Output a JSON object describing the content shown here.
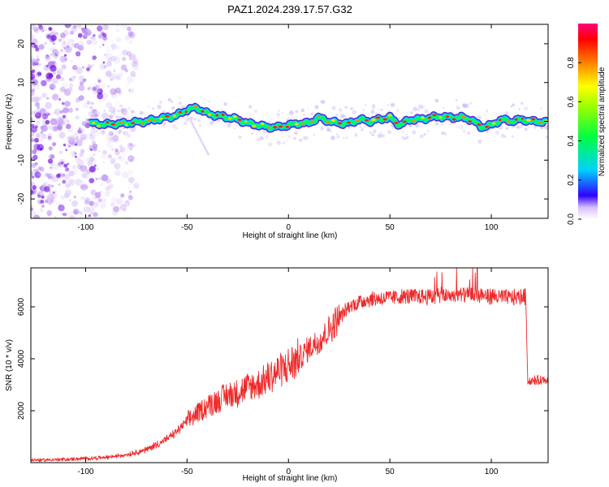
{
  "figure": {
    "title": "PAZ1.2024.239.17.57.G32"
  },
  "colors": {
    "ridge_low": "#2020ff",
    "ridge_mid": "#00d8ff",
    "ridge_high": "#00ff40",
    "ridge_peak": "#ff2020",
    "noise": "#8a2be2",
    "snr_line": "#ee2a2a"
  },
  "chart_data": [
    {
      "type": "heatmap",
      "title": "PAZ1.2024.239.17.57.G32",
      "xlabel": "Height of straight line (km)",
      "ylabel": "Frequency (Hz)",
      "xlim": [
        -127,
        128
      ],
      "ylim": [
        -25,
        25
      ],
      "x_ticks": [
        -100,
        -50,
        0,
        50,
        100
      ],
      "y_ticks": [
        -20,
        -10,
        0,
        10,
        20
      ],
      "colorbar": {
        "label": "Normalized spectral amplitude",
        "range": [
          0,
          1
        ],
        "ticks": [
          "0.0",
          "0.2",
          "0.4",
          "0.6",
          "0.8"
        ],
        "tick_values": [
          0.0,
          0.2,
          0.4,
          0.6,
          0.8
        ]
      },
      "ridge": {
        "x": [
          -98,
          -90,
          -80,
          -70,
          -60,
          -55,
          -50,
          -45,
          -40,
          -35,
          -30,
          -25,
          -20,
          -15,
          -10,
          -5,
          0,
          5,
          10,
          15,
          20,
          25,
          30,
          35,
          40,
          45,
          50,
          55,
          60,
          65,
          70,
          75,
          80,
          85,
          90,
          95,
          100,
          105,
          110,
          115,
          120,
          128
        ],
        "y": [
          -0.5,
          -0.8,
          -0.5,
          0,
          1,
          1.5,
          3,
          3.5,
          2,
          1.5,
          1,
          0.5,
          -0.5,
          -1,
          -1.5,
          -1.5,
          -1,
          -0.5,
          -0.5,
          1,
          0,
          -0.5,
          -0.5,
          0.5,
          0,
          0.5,
          1,
          -1,
          0.5,
          0.5,
          1,
          1.2,
          1,
          1,
          0.5,
          -1.5,
          -1,
          0.5,
          0,
          0.5,
          0,
          -0.2
        ]
      },
      "noise_region": {
        "x_from": -127,
        "x_to": -90
      }
    },
    {
      "type": "line",
      "xlabel": "Height of straight line (km)",
      "ylabel": "SNR (10 * v/v)",
      "xlim": [
        -127,
        128
      ],
      "ylim": [
        0,
        7500
      ],
      "x_ticks": [
        -100,
        -50,
        0,
        50,
        100
      ],
      "y_ticks": [
        2000,
        4000,
        6000
      ],
      "series": [
        {
          "x": [
            -127,
            -110,
            -90,
            -80,
            -70,
            -65,
            -60,
            -55,
            -50,
            -45,
            -40,
            -35,
            -30,
            -25,
            -20,
            -15,
            -10,
            -5,
            0,
            5,
            10,
            15,
            20,
            25,
            30,
            35,
            40,
            50,
            60,
            70,
            80,
            90,
            100,
            110,
            117,
            118,
            120,
            128
          ],
          "y": [
            100,
            120,
            200,
            300,
            500,
            700,
            900,
            1200,
            1600,
            1900,
            2200,
            2400,
            2600,
            2700,
            2900,
            3000,
            3300,
            3500,
            3700,
            4000,
            4400,
            4700,
            5100,
            5600,
            6000,
            6200,
            6300,
            6350,
            6400,
            6400,
            6450,
            6450,
            6400,
            6350,
            6400,
            3100,
            3150,
            3200
          ]
        }
      ]
    }
  ]
}
